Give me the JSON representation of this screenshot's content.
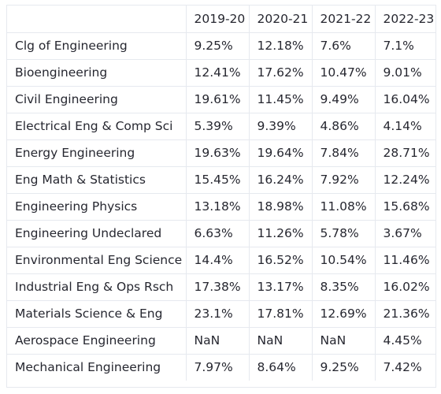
{
  "table": {
    "columns": [
      "",
      "2019-20",
      "2020-21",
      "2021-22",
      "2022-23"
    ],
    "rows": [
      {
        "label": "Clg of Engineering",
        "values": [
          "9.25%",
          "12.18%",
          "7.6%",
          "7.1%"
        ]
      },
      {
        "label": "Bioengineering",
        "values": [
          "12.41%",
          "17.62%",
          "10.47%",
          "9.01%"
        ]
      },
      {
        "label": "Civil Engineering",
        "values": [
          "19.61%",
          "11.45%",
          "9.49%",
          "16.04%"
        ]
      },
      {
        "label": "Electrical Eng & Comp Sci",
        "values": [
          "5.39%",
          "9.39%",
          "4.86%",
          "4.14%"
        ]
      },
      {
        "label": "Energy Engineering",
        "values": [
          "19.63%",
          "19.64%",
          "7.84%",
          "28.71%"
        ]
      },
      {
        "label": "Eng Math & Statistics",
        "values": [
          "15.45%",
          "16.24%",
          "7.92%",
          "12.24%"
        ]
      },
      {
        "label": "Engineering Physics",
        "values": [
          "13.18%",
          "18.98%",
          "11.08%",
          "15.68%"
        ]
      },
      {
        "label": "Engineering Undeclared",
        "values": [
          "6.63%",
          "11.26%",
          "5.78%",
          "3.67%"
        ]
      },
      {
        "label": "Environmental Eng Science",
        "values": [
          "14.4%",
          "16.52%",
          "10.54%",
          "11.46%"
        ]
      },
      {
        "label": "Industrial Eng & Ops Rsch",
        "values": [
          "17.38%",
          "13.17%",
          "8.35%",
          "16.02%"
        ]
      },
      {
        "label": "Materials Science & Eng",
        "values": [
          "23.1%",
          "17.81%",
          "12.69%",
          "21.36%"
        ]
      },
      {
        "label": "Aerospace Engineering",
        "values": [
          "NaN",
          "NaN",
          "NaN",
          "4.45%"
        ]
      },
      {
        "label": "Mechanical Engineering",
        "values": [
          "7.97%",
          "8.64%",
          "9.25%",
          "7.42%"
        ]
      }
    ]
  },
  "colors": {
    "text": "#262730",
    "border": "#e6e9ef",
    "background": "#ffffff"
  }
}
